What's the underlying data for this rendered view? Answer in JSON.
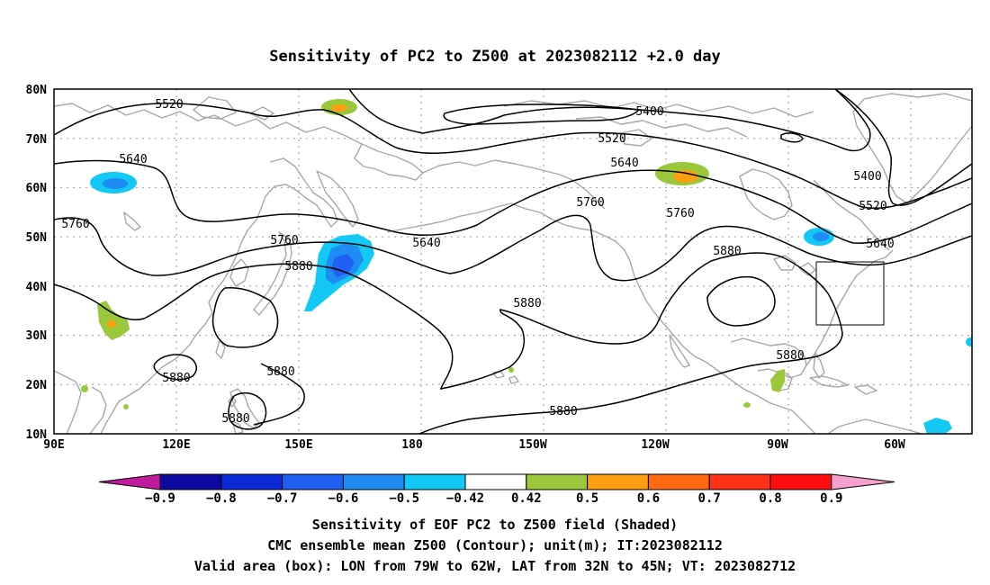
{
  "title": "Sensitivity of PC2 to Z500 at 2023082112 +2.0 day",
  "map": {
    "lat_labels": [
      "80N",
      "70N",
      "60N",
      "50N",
      "40N",
      "30N",
      "20N",
      "10N"
    ],
    "lon_labels": [
      "90E",
      "120E",
      "150E",
      "180",
      "150W",
      "120W",
      "90W",
      "60W"
    ],
    "valid_box": {
      "lon_from": "79W",
      "lon_to": "62W",
      "lat_from": "32N",
      "lat_to": "45N"
    }
  },
  "contours": [
    {
      "value": 5400,
      "labels": [
        "5400",
        "5400"
      ]
    },
    {
      "value": 5520,
      "labels": [
        "5520",
        "5520",
        "5520"
      ]
    },
    {
      "value": 5640,
      "labels": [
        "5640",
        "5640",
        "5640",
        "5640"
      ]
    },
    {
      "value": 5760,
      "labels": [
        "5760",
        "5760",
        "5760",
        "5760"
      ]
    },
    {
      "value": 5880,
      "labels": [
        "5880",
        "5880",
        "5880",
        "5880",
        "5880",
        "5880",
        "5880",
        "5880"
      ]
    }
  ],
  "colorbar": {
    "labels": [
      "−0.9",
      "−0.8",
      "−0.7",
      "−0.6",
      "−0.5",
      "−0.42",
      "0.42",
      "0.5",
      "0.6",
      "0.7",
      "0.8",
      "0.9"
    ],
    "colors": [
      "#c21a9c",
      "#0a0aa0",
      "#0a2ad8",
      "#1f5ff2",
      "#1e8cf2",
      "#14c8f5",
      "#ffffff",
      "#9ac83a",
      "#ff9e10",
      "#ff6a10",
      "#ff3218",
      "#ff0c10",
      "#f5a0cf"
    ]
  },
  "footer": {
    "line1": "Sensitivity of EOF PC2 to Z500 field (Shaded)",
    "line2": "CMC ensemble mean Z500 (Contour); unit(m); IT:2023082112",
    "line3": "Valid area (box): LON from 79W to 62W, LAT from 32N to 45N; VT: 2023082712"
  }
}
